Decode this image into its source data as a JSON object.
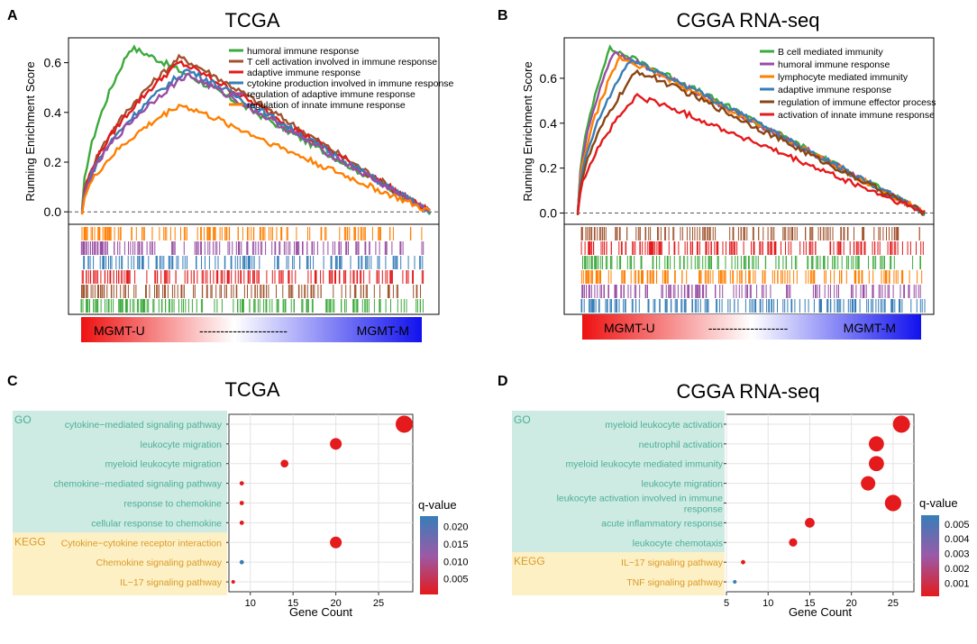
{
  "colors": {
    "green": "#3daa3d",
    "brown": "#a0522d",
    "red": "#e41a1c",
    "blue": "#377eb8",
    "purple": "#984ea3",
    "orange": "#ff7f00",
    "darkbrown": "#8b4513",
    "go_bg": "#cdeae3",
    "kegg_bg": "#fdf0c4",
    "go_text": "#4caf96",
    "kegg_text": "#d99a2a",
    "dot_red": "#e41a1c",
    "dot_blue": "#377eb8"
  },
  "chart_data": [
    {
      "panel": "A",
      "type": "line",
      "title": "TCGA",
      "ylabel": "Running Enrichment Score",
      "ylim": [
        -0.05,
        0.7
      ],
      "yticks": [
        "0.0",
        "0.2",
        "0.4",
        "0.6"
      ],
      "ytick_values": [
        0,
        0.2,
        0.4,
        0.6
      ],
      "gradient_labels": {
        "left": "MGMT-U",
        "mid": "---------------------",
        "right": "MGMT-M"
      },
      "series": [
        {
          "name": "humoral immune response",
          "color": "#3daa3d",
          "peak": 0.66,
          "peak_at": 0.14
        },
        {
          "name": "T cell activation involved in immune response",
          "color": "#a0522d",
          "peak": 0.62,
          "peak_at": 0.28
        },
        {
          "name": "adaptive immune response",
          "color": "#e41a1c",
          "peak": 0.6,
          "peak_at": 0.28
        },
        {
          "name": "cytokine production involved in immune response",
          "color": "#377eb8",
          "peak": 0.57,
          "peak_at": 0.3
        },
        {
          "name": "regulation of adaptive immune response",
          "color": "#984ea3",
          "peak": 0.55,
          "peak_at": 0.3
        },
        {
          "name": "regulation of innate immune response",
          "color": "#ff7f00",
          "peak": 0.43,
          "peak_at": 0.28
        }
      ],
      "rug_colors": [
        "#ff7f00",
        "#984ea3",
        "#377eb8",
        "#e41a1c",
        "#a0522d",
        "#3daa3d"
      ]
    },
    {
      "panel": "B",
      "type": "line",
      "title": "CGGA RNA-seq",
      "ylabel": "Running Enrichment Score",
      "ylim": [
        -0.05,
        0.78
      ],
      "yticks": [
        "0.0",
        "0.2",
        "0.4",
        "0.6"
      ],
      "ytick_values": [
        0,
        0.2,
        0.4,
        0.6
      ],
      "gradient_labels": {
        "left": "MGMT-U",
        "mid": "-------------------",
        "right": "MGMT-M"
      },
      "series": [
        {
          "name": "B cell mediated immunity",
          "color": "#3daa3d",
          "peak": 0.73,
          "peak_at": 0.09
        },
        {
          "name": "humoral immune response",
          "color": "#984ea3",
          "peak": 0.71,
          "peak_at": 0.1
        },
        {
          "name": "lymphocyte mediated immunity",
          "color": "#ff7f00",
          "peak": 0.69,
          "peak_at": 0.12
        },
        {
          "name": "adaptive immune response",
          "color": "#377eb8",
          "peak": 0.68,
          "peak_at": 0.15
        },
        {
          "name": "regulation of immune effector process",
          "color": "#8b4513",
          "peak": 0.63,
          "peak_at": 0.17
        },
        {
          "name": "activation of innate immune response",
          "color": "#e41a1c",
          "peak": 0.52,
          "peak_at": 0.17
        }
      ],
      "rug_colors": [
        "#a0522d",
        "#e41a1c",
        "#3daa3d",
        "#ff7f00",
        "#984ea3",
        "#377eb8"
      ]
    },
    {
      "panel": "C",
      "type": "scatter",
      "title": "TCGA",
      "xlabel": "Gene Count",
      "xlim": [
        7.5,
        29
      ],
      "xticks": [
        10,
        15,
        20,
        25
      ],
      "legend_title": "q-value",
      "legend_ticks": [
        "0.020",
        "0.015",
        "0.010",
        "0.005"
      ],
      "legend_tick_values": [
        0.02,
        0.015,
        0.01,
        0.005
      ],
      "legend_range": [
        0.0005,
        0.023
      ],
      "groups": [
        {
          "name": "GO",
          "count": 6
        },
        {
          "name": "KEGG",
          "count": 3
        }
      ],
      "terms": [
        {
          "label": "cytokine−mediated signaling pathway",
          "count": 28,
          "q": 0.001
        },
        {
          "label": "leukocyte migration",
          "count": 20,
          "q": 0.001
        },
        {
          "label": "myeloid leukocyte migration",
          "count": 14,
          "q": 0.001
        },
        {
          "label": "chemokine−mediated signaling pathway",
          "count": 9,
          "q": 0.001
        },
        {
          "label": "response to chemokine",
          "count": 9,
          "q": 0.001
        },
        {
          "label": "cellular response to chemokine",
          "count": 9,
          "q": 0.001
        },
        {
          "label": "Cytokine−cytokine receptor interaction",
          "count": 20,
          "q": 0.001
        },
        {
          "label": "Chemokine signaling pathway",
          "count": 9,
          "q": 0.022
        },
        {
          "label": "IL−17 signaling pathway",
          "count": 8,
          "q": 0.001
        }
      ]
    },
    {
      "panel": "D",
      "type": "scatter",
      "title": "CGGA RNA-seq",
      "xlabel": "Gene Count",
      "xlim": [
        5,
        27.5
      ],
      "xticks": [
        5,
        10,
        15,
        20,
        25
      ],
      "legend_title": "q-value",
      "legend_ticks": [
        "0.005",
        "0.004",
        "0.003",
        "0.002",
        "0.001"
      ],
      "legend_tick_values": [
        0.005,
        0.004,
        0.003,
        0.002,
        0.001
      ],
      "legend_range": [
        0.0001,
        0.0056
      ],
      "groups": [
        {
          "name": "GO",
          "count": 7
        },
        {
          "name": "KEGG",
          "count": 2
        }
      ],
      "terms": [
        {
          "label": "myeloid leukocyte activation",
          "count": 26,
          "q": 0.0002
        },
        {
          "label": "neutrophil activation",
          "count": 23,
          "q": 0.0002
        },
        {
          "label": "myeloid leukocyte mediated immunity",
          "count": 23,
          "q": 0.0002
        },
        {
          "label": "leukocyte migration",
          "count": 22,
          "q": 0.0002
        },
        {
          "label": "leukocyte activation involved in immune response",
          "count": 25,
          "q": 0.0002
        },
        {
          "label": "acute inflammatory response",
          "count": 15,
          "q": 0.0002
        },
        {
          "label": "leukocyte chemotaxis",
          "count": 13,
          "q": 0.0002
        },
        {
          "label": "IL−17 signaling pathway",
          "count": 7,
          "q": 0.0003
        },
        {
          "label": "TNF signaling pathway",
          "count": 6,
          "q": 0.0055
        }
      ]
    }
  ]
}
